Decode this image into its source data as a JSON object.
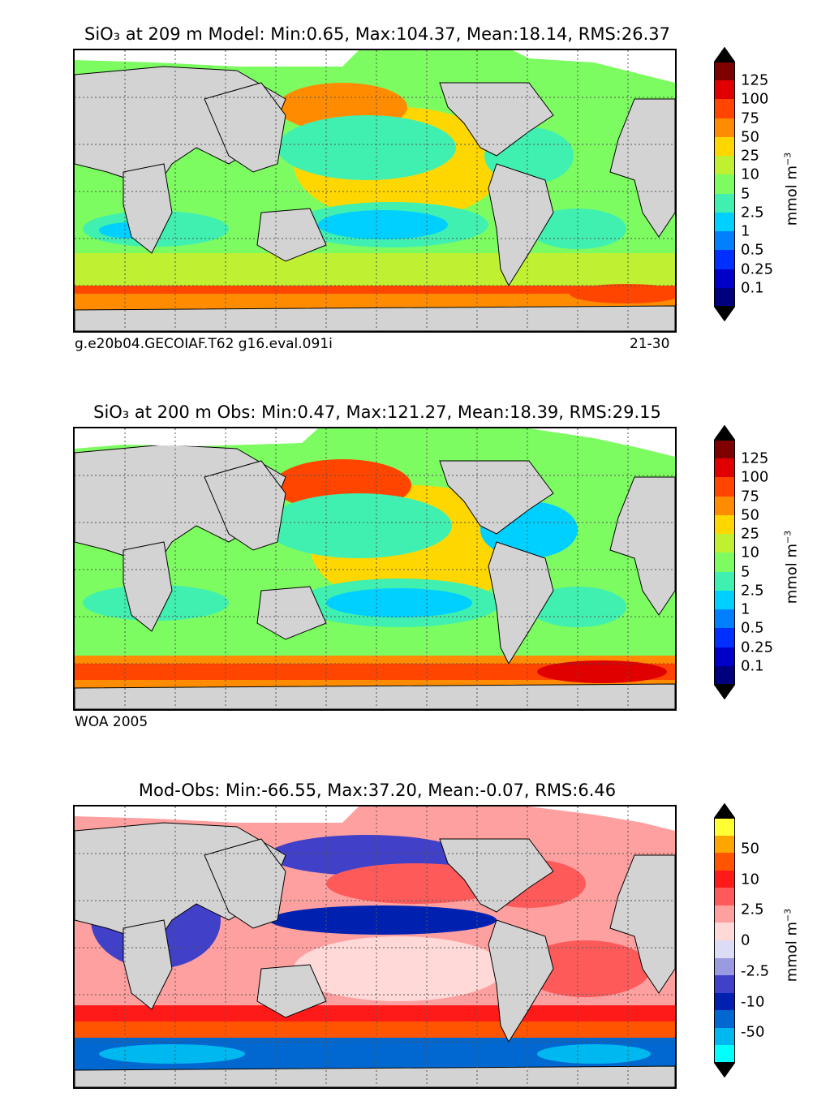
{
  "panels": [
    {
      "id": "model",
      "title": "SiO₃ at 209 m Model: Min:0.65, Max:104.37, Mean:18.14, RMS:26.37",
      "footer_left": "g.e20b04.GECOIAF.T62 g16.eval.091i",
      "footer_right": "21-30",
      "colorbar": {
        "unit": "mmol m",
        "unit_exp": "−3",
        "ticks": [
          "125",
          "100",
          "75",
          "50",
          "25",
          "10",
          "5",
          "2.5",
          "1",
          "0.5",
          "0.25",
          "0.1"
        ],
        "colors": [
          "#7f0000",
          "#e00000",
          "#ff4500",
          "#ff8c00",
          "#ffd700",
          "#c0f032",
          "#7cfc60",
          "#40f0b0",
          "#00d0ff",
          "#0080ff",
          "#0030ff",
          "#0000c8",
          "#00007f"
        ]
      }
    },
    {
      "id": "obs",
      "title": "SiO₃ at 200 m Obs: Min:0.47, Max:121.27, Mean:18.39, RMS:29.15",
      "footer_left": "WOA 2005",
      "footer_right": "",
      "colorbar": {
        "unit": "mmol m",
        "unit_exp": "−3",
        "ticks": [
          "125",
          "100",
          "75",
          "50",
          "25",
          "10",
          "5",
          "2.5",
          "1",
          "0.5",
          "0.25",
          "0.1"
        ],
        "colors": [
          "#7f0000",
          "#e00000",
          "#ff4500",
          "#ff8c00",
          "#ffd700",
          "#c0f032",
          "#7cfc60",
          "#40f0b0",
          "#00d0ff",
          "#0080ff",
          "#0030ff",
          "#0000c8",
          "#00007f"
        ]
      }
    },
    {
      "id": "diff",
      "title": "Mod-Obs: Min:-66.55, Max:37.20, Mean:-0.07, RMS:6.46",
      "footer_left": "",
      "footer_right": "",
      "colorbar": {
        "unit": "mmol m",
        "unit_exp": "−3",
        "ticks": [
          "50",
          "10",
          "2.5",
          "0",
          "-2.5",
          "-10",
          "-50"
        ],
        "colors": [
          "#ffff33",
          "#ffa500",
          "#ff5500",
          "#ff1a1a",
          "#ff5a5a",
          "#ffa0a0",
          "#ffd8d8",
          "#dcdcf5",
          "#9a9ae0",
          "#4040c8",
          "#0020b0",
          "#0068d0",
          "#00b8f0",
          "#00ffff"
        ]
      }
    }
  ]
}
